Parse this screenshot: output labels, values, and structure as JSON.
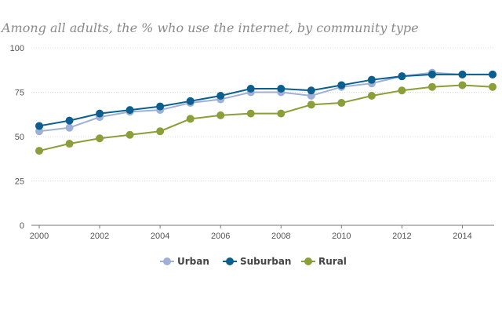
{
  "chart_data": {
    "type": "line",
    "title": "Among all adults, the % who use the internet, by community type",
    "xlabel": "",
    "ylabel": "",
    "xlim": [
      2000,
      2015
    ],
    "ylim": [
      0,
      100
    ],
    "yticks": [
      0,
      25,
      50,
      75,
      100
    ],
    "xticks": [
      2000,
      2002,
      2004,
      2006,
      2008,
      2010,
      2012,
      2014
    ],
    "grid": "horizontal dotted",
    "legend_position": "bottom-center",
    "x": [
      2000,
      2001,
      2002,
      2003,
      2004,
      2005,
      2006,
      2007,
      2008,
      2009,
      2010,
      2011,
      2012,
      2013,
      2014,
      2015
    ],
    "series": [
      {
        "name": "Urban",
        "color": "#9eb0d6",
        "values": [
          53,
          55,
          61,
          64,
          65,
          69,
          71,
          75,
          75,
          73,
          78,
          80,
          84,
          86,
          85,
          85
        ]
      },
      {
        "name": "Suburban",
        "color": "#0b5f8e",
        "values": [
          56,
          59,
          63,
          65,
          67,
          70,
          73,
          77,
          77,
          76,
          79,
          82,
          84,
          85,
          85,
          85
        ]
      },
      {
        "name": "Rural",
        "color": "#8a9e3a",
        "values": [
          42,
          46,
          49,
          51,
          53,
          60,
          62,
          63,
          63,
          68,
          69,
          73,
          76,
          78,
          79,
          78
        ]
      }
    ]
  }
}
